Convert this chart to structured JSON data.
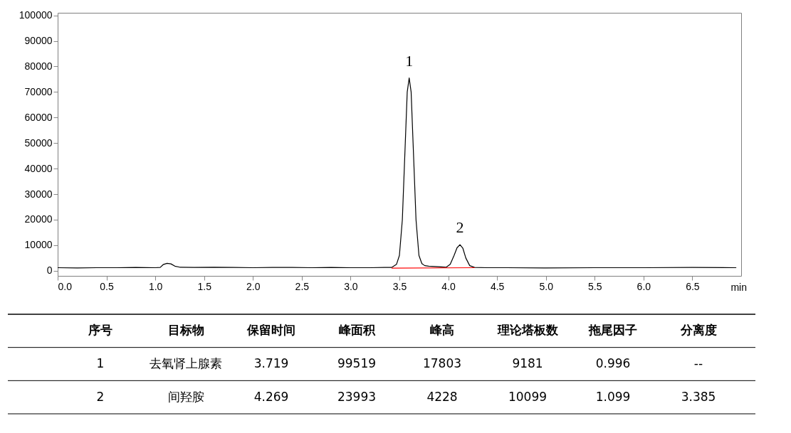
{
  "chart_data": {
    "type": "line",
    "xlabel": "min",
    "xlim": [
      0,
      7.0
    ],
    "xticks": [
      {
        "value": 0,
        "label": "0.0"
      },
      {
        "value": 0.5,
        "label": "0.5"
      },
      {
        "value": 1,
        "label": "1.0"
      },
      {
        "value": 1.5,
        "label": "1.5"
      },
      {
        "value": 2,
        "label": "2.0"
      },
      {
        "value": 2.5,
        "label": "2.5"
      },
      {
        "value": 3,
        "label": "3.0"
      },
      {
        "value": 3.5,
        "label": "3.5"
      },
      {
        "value": 4,
        "label": "4.0"
      },
      {
        "value": 4.5,
        "label": "4.5"
      },
      {
        "value": 5,
        "label": "5.0"
      },
      {
        "value": 5.5,
        "label": "5.5"
      },
      {
        "value": 6,
        "label": "6.0"
      },
      {
        "value": 6.5,
        "label": "6.5"
      }
    ],
    "ylim": [
      -2000,
      101000
    ],
    "yticks": [
      0,
      10000,
      20000,
      30000,
      40000,
      50000,
      60000,
      70000,
      80000,
      90000,
      100000
    ],
    "grid": false,
    "legend": false,
    "marker": "none",
    "line_style": "solid",
    "series": [
      {
        "color": "#000000",
        "x": [
          0,
          0.2,
          0.4,
          0.6,
          0.8,
          1.0,
          1.05,
          1.08,
          1.12,
          1.16,
          1.2,
          1.25,
          1.4,
          1.6,
          1.8,
          2.0,
          2.2,
          2.4,
          2.6,
          2.8,
          3.0,
          3.2,
          3.35,
          3.42,
          3.47,
          3.5,
          3.53,
          3.56,
          3.58,
          3.6,
          3.62,
          3.64,
          3.67,
          3.7,
          3.73,
          3.76,
          3.8,
          3.9,
          3.98,
          4.02,
          4.06,
          4.09,
          4.12,
          4.15,
          4.18,
          4.22,
          4.27,
          4.4,
          4.6,
          5.0,
          5.5,
          6.0,
          6.5,
          6.95
        ],
        "values": [
          1200,
          1100,
          1200,
          1200,
          1300,
          1200,
          1300,
          2400,
          2900,
          2700,
          1800,
          1400,
          1300,
          1400,
          1300,
          1200,
          1300,
          1300,
          1200,
          1300,
          1200,
          1200,
          1300,
          1300,
          2500,
          6000,
          20000,
          50000,
          70000,
          75500,
          70000,
          50000,
          20000,
          6000,
          2800,
          2000,
          1800,
          1600,
          1400,
          2500,
          6000,
          9000,
          10200,
          8800,
          5000,
          2000,
          1300,
          1200,
          1200,
          1100,
          1200,
          1200,
          1300,
          1200
        ]
      },
      {
        "color": "#ff0000",
        "x": [
          3.42,
          4.27
        ],
        "values": [
          1000,
          1200
        ]
      }
    ],
    "annotations": [
      {
        "text": "1",
        "x": 3.6,
        "y": 75500
      },
      {
        "text": "2",
        "x": 4.12,
        "y": 10200
      },
      "序号",
      "目标物",
      "保留时间",
      "峰面积",
      "峰高",
      "理论塔板数",
      "拖尾因子",
      "分离度",
      "1",
      "去氧肾上腺素",
      "3.719",
      "99519",
      "17803",
      "9181",
      "0.996",
      "--",
      "2",
      "间羟胺",
      "4.269",
      "23993",
      "4228",
      "10099",
      "1.099",
      "3.385"
    ]
  }
}
